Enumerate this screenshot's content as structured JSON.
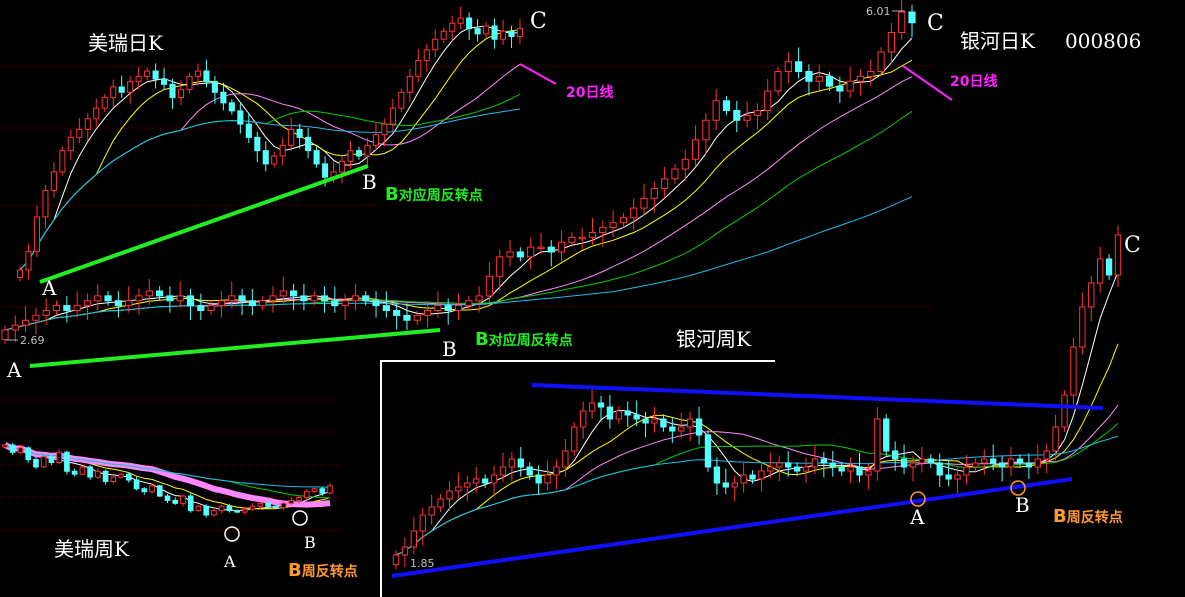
{
  "colors": {
    "background": "#000000",
    "up": "#ff3333",
    "down": "#55ffff",
    "ma_colors": [
      "#ffffff",
      "#ffff00",
      "#ff88ff",
      "#00cc00",
      "#22bbee"
    ],
    "trend_green": "#22ee22",
    "trend_blue": "#1010ff",
    "note_magenta": "#ff22ff",
    "note_orange": "#ff9933"
  },
  "chart_data": [
    {
      "type": "candlestick",
      "title": "美瑞日K",
      "closes": [
        5,
        12,
        25,
        35,
        42,
        50,
        55,
        58,
        62,
        66,
        70,
        74,
        72,
        76,
        78,
        80,
        77,
        75,
        70,
        73,
        78,
        80,
        76,
        72,
        68,
        65,
        60,
        55,
        50,
        45,
        48,
        52,
        58,
        55,
        50,
        45,
        40,
        42,
        46,
        50,
        48,
        52,
        56,
        60,
        66,
        72,
        78,
        84,
        88,
        92,
        95,
        98,
        100,
        96,
        94,
        97,
        92,
        95,
        93,
        96
      ],
      "annotations": {
        "A": "A",
        "B": "B",
        "C": "C",
        "ma20_note": "20日线",
        "b_note_prefix": "B",
        "b_note": "对应周反转点"
      }
    },
    {
      "type": "candlestick",
      "title": "银河日K",
      "code": "000806",
      "closes": [
        2.75,
        2.8,
        2.85,
        2.9,
        2.95,
        3.0,
        2.95,
        3.0,
        3.05,
        3.1,
        3.05,
        3.0,
        3.05,
        3.1,
        3.15,
        3.1,
        3.05,
        3.1,
        3.0,
        2.95,
        3.0,
        3.05,
        3.1,
        3.05,
        3.0,
        3.05,
        3.1,
        3.15,
        3.1,
        3.05,
        3.1,
        3.05,
        3.0,
        3.05,
        3.1,
        3.05,
        3.0,
        2.95,
        2.9,
        2.85,
        2.9,
        2.95,
        3.0,
        2.95,
        3.0,
        3.05,
        3.1,
        3.3,
        3.5,
        3.55,
        3.5,
        3.6,
        3.6,
        3.55,
        3.65,
        3.7,
        3.7,
        3.75,
        3.8,
        3.85,
        3.9,
        4.0,
        4.1,
        4.2,
        4.3,
        4.4,
        4.5,
        4.7,
        4.9,
        5.1,
        5.0,
        4.9,
        4.95,
        5.0,
        5.2,
        5.4,
        5.5,
        5.4,
        5.3,
        5.35,
        5.25,
        5.2,
        5.3,
        5.35,
        5.4,
        5.6,
        5.8,
        6.01,
        5.9
      ],
      "low_label": "2.69",
      "high_label": "6.01",
      "annotations": {
        "A": "A",
        "B": "B",
        "C": "C",
        "ma20_note": "20日线",
        "b_note_prefix": "B",
        "b_note": "对应周反转点"
      }
    },
    {
      "type": "candlestick",
      "title": "银河周K",
      "closes": [
        1.9,
        2.0,
        2.2,
        2.4,
        2.5,
        2.6,
        2.7,
        2.75,
        2.8,
        2.85,
        2.8,
        2.9,
        3.0,
        3.1,
        3.0,
        2.9,
        2.8,
        2.9,
        3.0,
        3.2,
        3.5,
        3.7,
        3.8,
        3.75,
        3.6,
        3.7,
        3.65,
        3.6,
        3.55,
        3.6,
        3.5,
        3.45,
        3.5,
        3.6,
        3.4,
        3.0,
        2.8,
        2.75,
        2.8,
        2.9,
        2.85,
        2.95,
        3.0,
        3.05,
        3.0,
        2.95,
        3.0,
        3.1,
        3.05,
        3.0,
        2.95,
        3.0,
        2.9,
        2.95,
        3.6,
        3.2,
        3.1,
        3.0,
        3.05,
        3.1,
        3.05,
        2.9,
        2.85,
        2.9,
        3.0,
        3.05,
        3.1,
        3.05,
        3.0,
        3.1,
        3.05,
        3.0,
        3.1,
        3.2,
        3.5,
        3.9,
        4.5,
        5.0,
        5.3,
        5.6,
        5.4,
        5.9
      ],
      "low_label": "1.85",
      "annotations": {
        "A": "A",
        "B": "B",
        "C": "C",
        "b_note_prefix": "B",
        "b_note": "周反转点"
      }
    },
    {
      "type": "candlestick",
      "title": "美瑞周K",
      "closes": [
        60,
        55,
        58,
        50,
        45,
        52,
        48,
        55,
        42,
        40,
        45,
        38,
        42,
        35,
        38,
        40,
        36,
        30,
        28,
        32,
        25,
        22,
        20,
        25,
        15,
        18,
        12,
        15,
        18,
        15,
        14,
        16,
        18,
        20,
        18,
        17,
        20,
        22,
        24,
        28,
        30,
        27,
        32
      ],
      "annotations": {
        "A": "A",
        "B": "B",
        "b_note_prefix": "B",
        "b_note": "周反转点"
      }
    }
  ]
}
